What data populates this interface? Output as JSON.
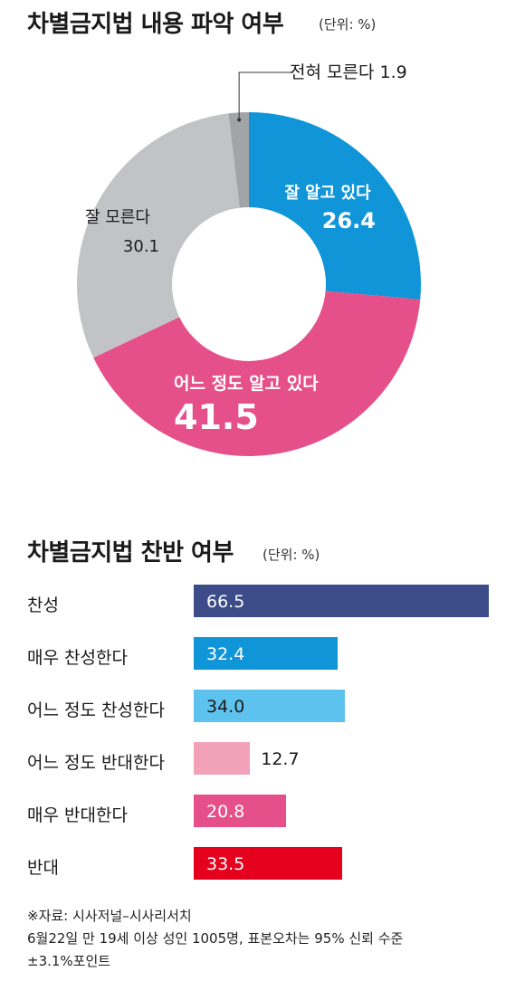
{
  "chart_data": [
    {
      "type": "pie",
      "title": "차별금지법 내용 파악 여부",
      "unit": "(단위: %)",
      "slices": [
        {
          "label": "잘 알고 있다",
          "value": 26.4,
          "color": "#0f95d8"
        },
        {
          "label": "어느 정도 알고 있다",
          "value": 41.5,
          "color": "#e6508a"
        },
        {
          "label": "잘 모른다",
          "value": 30.1,
          "color": "#c2c3c7"
        },
        {
          "label": "전혀 모른다",
          "value": 1.9,
          "color": "#a2a4a8"
        }
      ]
    },
    {
      "type": "bar",
      "title": "차별금지법 찬반 여부",
      "unit": "(단위: %)",
      "categories": [
        "찬성",
        "매우 찬성한다",
        "어느 정도 찬성한다",
        "어느 정도 반대한다",
        "매우 반대한다",
        "반대"
      ],
      "values": [
        66.5,
        32.4,
        34.0,
        12.7,
        20.8,
        33.5
      ],
      "value_labels": [
        "66.5",
        "32.4",
        "34.0",
        "12.7",
        "20.8",
        "33.5"
      ],
      "colors": [
        "#3b4c88",
        "#0f95d8",
        "#5ec2ee",
        "#f2a1ba",
        "#e6508a",
        "#e5001d"
      ]
    }
  ],
  "source": {
    "line1": "※자료: 시사저널–시사리서치",
    "line2": "6월22일 만 19세 이상 성인 1005명, 표본오차는 95% 신뢰 수준",
    "line3": "±3.1%포인트"
  }
}
